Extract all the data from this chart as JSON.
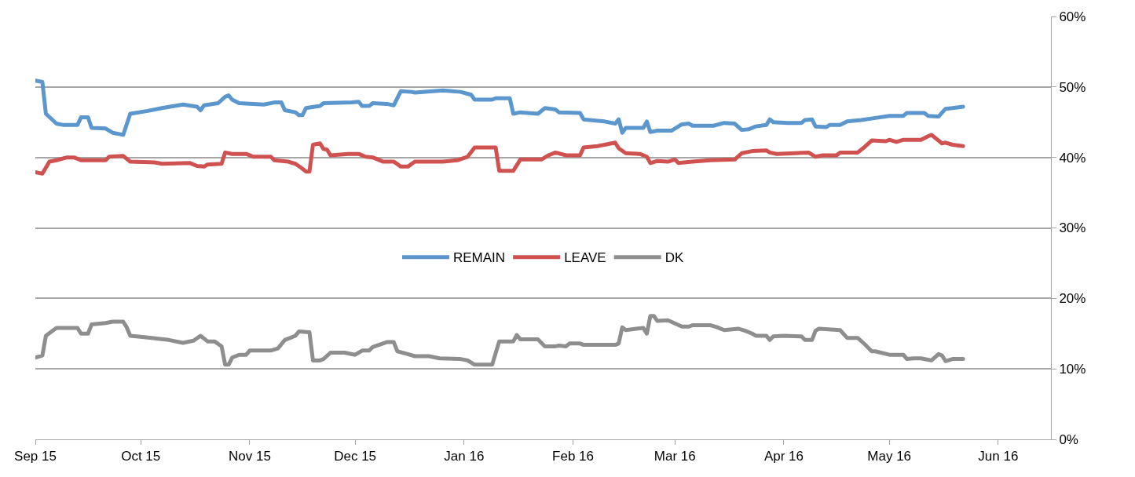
{
  "chart_data": {
    "type": "line",
    "legend": "center",
    "grid": "y",
    "line_style": "solid",
    "marker": "none",
    "xlim": [
      "2015-09-01",
      "2016-06-16"
    ],
    "xticks": [
      {
        "value": "2015-09-01",
        "label": "Sep 15"
      },
      {
        "value": "2015-10-01",
        "label": "Oct 15"
      },
      {
        "value": "2015-11-01",
        "label": "Nov 15"
      },
      {
        "value": "2015-12-01",
        "label": "Dec 15"
      },
      {
        "value": "2016-01-01",
        "label": "Jan 16"
      },
      {
        "value": "2016-02-01",
        "label": "Feb 16"
      },
      {
        "value": "2016-03-01",
        "label": "Mar 16"
      },
      {
        "value": "2016-04-01",
        "label": "Apr 16"
      },
      {
        "value": "2016-05-01",
        "label": "May 16"
      },
      {
        "value": "2016-06-01",
        "label": "Jun 16"
      }
    ],
    "ylim": [
      0,
      60
    ],
    "yticks": [
      {
        "value": 0,
        "label": "0%"
      },
      {
        "value": 10,
        "label": "10%"
      },
      {
        "value": 20,
        "label": "20%"
      },
      {
        "value": 30,
        "label": "30%"
      },
      {
        "value": 40,
        "label": "40%"
      },
      {
        "value": 50,
        "label": "50%"
      },
      {
        "value": 60,
        "label": "60%"
      }
    ],
    "series": [
      {
        "name": "REMAIN",
        "color": "#5b96cc",
        "x": [
          "2015-09-01",
          "2015-09-03",
          "2015-09-04",
          "2015-09-07",
          "2015-09-09",
          "2015-09-13",
          "2015-09-14",
          "2015-09-16",
          "2015-09-17",
          "2015-09-21",
          "2015-09-23",
          "2015-09-26",
          "2015-09-28",
          "2015-10-03",
          "2015-10-07",
          "2015-10-13",
          "2015-10-17",
          "2015-10-18",
          "2015-10-19",
          "2015-10-23",
          "2015-10-25",
          "2015-10-26",
          "2015-10-27",
          "2015-10-29",
          "2015-11-05",
          "2015-11-08",
          "2015-11-10",
          "2015-11-11",
          "2015-11-14",
          "2015-11-15",
          "2015-11-16",
          "2015-11-17",
          "2015-11-21",
          "2015-11-22",
          "2015-11-30",
          "2015-12-02",
          "2015-12-03",
          "2015-12-05",
          "2015-12-06",
          "2015-12-10",
          "2015-12-12",
          "2015-12-14",
          "2015-12-17",
          "2015-12-18",
          "2015-12-26",
          "2015-12-31",
          "2016-01-03",
          "2016-01-04",
          "2016-01-09",
          "2016-01-10",
          "2016-01-14",
          "2016-01-15",
          "2016-01-17",
          "2016-01-22",
          "2016-01-24",
          "2016-01-27",
          "2016-01-28",
          "2016-02-03",
          "2016-02-04",
          "2016-02-10",
          "2016-02-13",
          "2016-02-14",
          "2016-02-15",
          "2016-02-16",
          "2016-02-21",
          "2016-02-22",
          "2016-02-23",
          "2016-02-25",
          "2016-02-29",
          "2016-03-03",
          "2016-03-05",
          "2016-03-06",
          "2016-03-12",
          "2016-03-15",
          "2016-03-18",
          "2016-03-20",
          "2016-03-22",
          "2016-03-24",
          "2016-03-27",
          "2016-03-28",
          "2016-03-29",
          "2016-04-02",
          "2016-04-06",
          "2016-04-07",
          "2016-04-09",
          "2016-04-10",
          "2016-04-13",
          "2016-04-14",
          "2016-04-17",
          "2016-04-19",
          "2016-04-23",
          "2016-04-27",
          "2016-05-01",
          "2016-05-05",
          "2016-05-06",
          "2016-05-11",
          "2016-05-12",
          "2016-05-15",
          "2016-05-17",
          "2016-05-19",
          "2016-05-22"
        ],
        "values": [
          50.9,
          50.7,
          46.2,
          44.8,
          44.6,
          44.6,
          45.7,
          45.7,
          44.2,
          44.1,
          43.5,
          43.2,
          46.2,
          46.6,
          47.0,
          47.5,
          47.2,
          46.7,
          47.4,
          47.7,
          48.6,
          48.8,
          48.2,
          47.7,
          47.5,
          47.8,
          47.8,
          46.7,
          46.4,
          46.0,
          46.0,
          47.0,
          47.3,
          47.7,
          47.8,
          47.9,
          47.3,
          47.3,
          47.7,
          47.6,
          47.4,
          49.4,
          49.3,
          49.2,
          49.5,
          49.3,
          48.9,
          48.2,
          48.2,
          48.4,
          48.4,
          46.2,
          46.4,
          46.2,
          47.0,
          46.8,
          46.4,
          46.3,
          45.4,
          45.1,
          44.8,
          45.4,
          43.5,
          44.2,
          44.2,
          45.1,
          43.6,
          43.8,
          43.8,
          44.7,
          44.8,
          44.5,
          44.5,
          44.9,
          44.8,
          43.9,
          44.0,
          44.4,
          44.6,
          45.4,
          45.0,
          44.9,
          44.9,
          45.3,
          45.4,
          44.4,
          44.3,
          44.6,
          44.6,
          45.1,
          45.3,
          45.6,
          45.9,
          45.9,
          46.3,
          46.3,
          45.9,
          45.8,
          46.9,
          47.0,
          47.2
        ]
      },
      {
        "name": "LEAVE",
        "color": "#cf5250",
        "x": [
          "2015-09-01",
          "2015-09-03",
          "2015-09-05",
          "2015-09-07",
          "2015-09-10",
          "2015-09-12",
          "2015-09-14",
          "2015-09-21",
          "2015-09-22",
          "2015-09-26",
          "2015-09-28",
          "2015-10-05",
          "2015-10-07",
          "2015-10-15",
          "2015-10-17",
          "2015-10-19",
          "2015-10-20",
          "2015-10-24",
          "2015-10-25",
          "2015-10-27",
          "2015-10-31",
          "2015-11-02",
          "2015-11-07",
          "2015-11-08",
          "2015-11-12",
          "2015-11-14",
          "2015-11-16",
          "2015-11-17",
          "2015-11-18",
          "2015-11-19",
          "2015-11-21",
          "2015-11-22",
          "2015-11-23",
          "2015-11-24",
          "2015-11-29",
          "2015-12-02",
          "2015-12-04",
          "2015-12-06",
          "2015-12-09",
          "2015-12-12",
          "2015-12-14",
          "2015-12-16",
          "2015-12-18",
          "2015-12-26",
          "2015-12-30",
          "2016-01-02",
          "2016-01-04",
          "2016-01-10",
          "2016-01-11",
          "2016-01-15",
          "2016-01-17",
          "2016-01-23",
          "2016-01-25",
          "2016-01-27",
          "2016-01-30",
          "2016-02-03",
          "2016-02-04",
          "2016-02-08",
          "2016-02-10",
          "2016-02-13",
          "2016-02-14",
          "2016-02-16",
          "2016-02-20",
          "2016-02-22",
          "2016-02-23",
          "2016-02-25",
          "2016-02-28",
          "2016-03-01",
          "2016-03-02",
          "2016-03-06",
          "2016-03-11",
          "2016-03-18",
          "2016-03-20",
          "2016-03-23",
          "2016-03-27",
          "2016-03-28",
          "2016-03-30",
          "2016-04-08",
          "2016-04-10",
          "2016-04-12",
          "2016-04-16",
          "2016-04-17",
          "2016-04-22",
          "2016-04-24",
          "2016-04-26",
          "2016-04-30",
          "2016-05-01",
          "2016-05-03",
          "2016-05-05",
          "2016-05-10",
          "2016-05-12",
          "2016-05-13",
          "2016-05-16",
          "2016-05-17",
          "2016-05-19",
          "2016-05-22"
        ],
        "values": [
          37.9,
          37.7,
          39.4,
          39.6,
          40.0,
          40.0,
          39.6,
          39.6,
          40.1,
          40.2,
          39.4,
          39.3,
          39.1,
          39.2,
          38.8,
          38.7,
          39.0,
          39.1,
          40.7,
          40.5,
          40.5,
          40.1,
          40.1,
          39.6,
          39.4,
          39.1,
          38.4,
          38.0,
          38.0,
          41.8,
          42.0,
          41.2,
          41.1,
          40.3,
          40.5,
          40.5,
          40.1,
          40.0,
          39.4,
          39.4,
          38.7,
          38.7,
          39.4,
          39.4,
          39.6,
          40.1,
          41.4,
          41.4,
          38.1,
          38.1,
          39.7,
          39.7,
          40.3,
          40.7,
          40.3,
          40.3,
          41.4,
          41.6,
          41.8,
          42.1,
          41.3,
          40.6,
          40.5,
          40.1,
          39.2,
          39.5,
          39.4,
          39.7,
          39.2,
          39.4,
          39.6,
          39.7,
          40.6,
          40.9,
          41.0,
          40.7,
          40.5,
          40.7,
          40.1,
          40.3,
          40.3,
          40.7,
          40.7,
          41.5,
          42.4,
          42.3,
          42.5,
          42.2,
          42.5,
          42.5,
          43.0,
          43.2,
          42.0,
          42.1,
          41.8,
          41.6
        ]
      },
      {
        "name": "DK",
        "color": "#8e8e8e",
        "x": [
          "2015-09-01",
          "2015-09-03",
          "2015-09-04",
          "2015-09-07",
          "2015-09-13",
          "2015-09-14",
          "2015-09-16",
          "2015-09-17",
          "2015-09-21",
          "2015-09-23",
          "2015-09-26",
          "2015-09-27",
          "2015-09-28",
          "2015-10-02",
          "2015-10-09",
          "2015-10-13",
          "2015-10-16",
          "2015-10-18",
          "2015-10-20",
          "2015-10-22",
          "2015-10-24",
          "2015-10-25",
          "2015-10-26",
          "2015-10-27",
          "2015-10-29",
          "2015-10-31",
          "2015-11-01",
          "2015-11-07",
          "2015-11-09",
          "2015-11-11",
          "2015-11-14",
          "2015-11-15",
          "2015-11-18",
          "2015-11-19",
          "2015-11-21",
          "2015-11-22",
          "2015-11-24",
          "2015-11-28",
          "2015-12-01",
          "2015-12-03",
          "2015-12-05",
          "2015-12-06",
          "2015-12-10",
          "2015-12-12",
          "2015-12-13",
          "2015-12-16",
          "2015-12-18",
          "2015-12-22",
          "2015-12-25",
          "2015-12-31",
          "2016-01-02",
          "2016-01-04",
          "2016-01-09",
          "2016-01-11",
          "2016-01-15",
          "2016-01-16",
          "2016-01-17",
          "2016-01-22",
          "2016-01-24",
          "2016-01-27",
          "2016-01-28",
          "2016-01-30",
          "2016-01-31",
          "2016-02-03",
          "2016-02-04",
          "2016-02-13",
          "2016-02-14",
          "2016-02-15",
          "2016-02-16",
          "2016-02-19",
          "2016-02-21",
          "2016-02-22",
          "2016-02-23",
          "2016-02-24",
          "2016-02-25",
          "2016-02-28",
          "2016-03-03",
          "2016-03-05",
          "2016-03-06",
          "2016-03-11",
          "2016-03-13",
          "2016-03-15",
          "2016-03-19",
          "2016-03-21",
          "2016-03-23",
          "2016-03-24",
          "2016-03-27",
          "2016-03-28",
          "2016-03-29",
          "2016-04-01",
          "2016-04-06",
          "2016-04-07",
          "2016-04-09",
          "2016-04-10",
          "2016-04-11",
          "2016-04-17",
          "2016-04-19",
          "2016-04-22",
          "2016-04-24",
          "2016-04-26",
          "2016-04-27",
          "2016-05-01",
          "2016-05-05",
          "2016-05-06",
          "2016-05-08",
          "2016-05-10",
          "2016-05-12",
          "2016-05-13",
          "2016-05-15",
          "2016-05-16",
          "2016-05-17",
          "2016-05-19",
          "2016-05-22"
        ],
        "values": [
          11.6,
          11.9,
          14.7,
          15.8,
          15.8,
          15.0,
          15.0,
          16.3,
          16.5,
          16.7,
          16.7,
          15.9,
          14.7,
          14.5,
          14.1,
          13.7,
          14.0,
          14.7,
          13.9,
          13.9,
          13.2,
          10.6,
          10.6,
          11.6,
          12.0,
          12.0,
          12.6,
          12.6,
          12.9,
          14.1,
          14.7,
          15.3,
          15.2,
          11.2,
          11.2,
          11.4,
          12.3,
          12.3,
          12.0,
          12.6,
          12.6,
          13.1,
          13.8,
          13.8,
          12.5,
          12.1,
          11.8,
          11.8,
          11.5,
          11.4,
          11.2,
          10.6,
          10.6,
          13.9,
          13.9,
          14.8,
          14.2,
          14.2,
          13.2,
          13.2,
          13.3,
          13.2,
          13.6,
          13.6,
          13.4,
          13.4,
          13.6,
          15.9,
          15.5,
          15.7,
          15.8,
          15.0,
          17.5,
          17.5,
          16.8,
          16.9,
          16.0,
          16.0,
          16.2,
          16.2,
          15.9,
          15.5,
          15.7,
          15.4,
          15.0,
          14.7,
          14.7,
          14.1,
          14.6,
          14.7,
          14.6,
          14.1,
          14.1,
          15.4,
          15.7,
          15.5,
          14.4,
          14.4,
          13.5,
          12.5,
          12.5,
          12.0,
          12.0,
          11.4,
          11.5,
          11.5,
          11.3,
          11.2,
          12.1,
          11.9,
          11.1,
          11.4,
          11.4
        ]
      }
    ]
  }
}
